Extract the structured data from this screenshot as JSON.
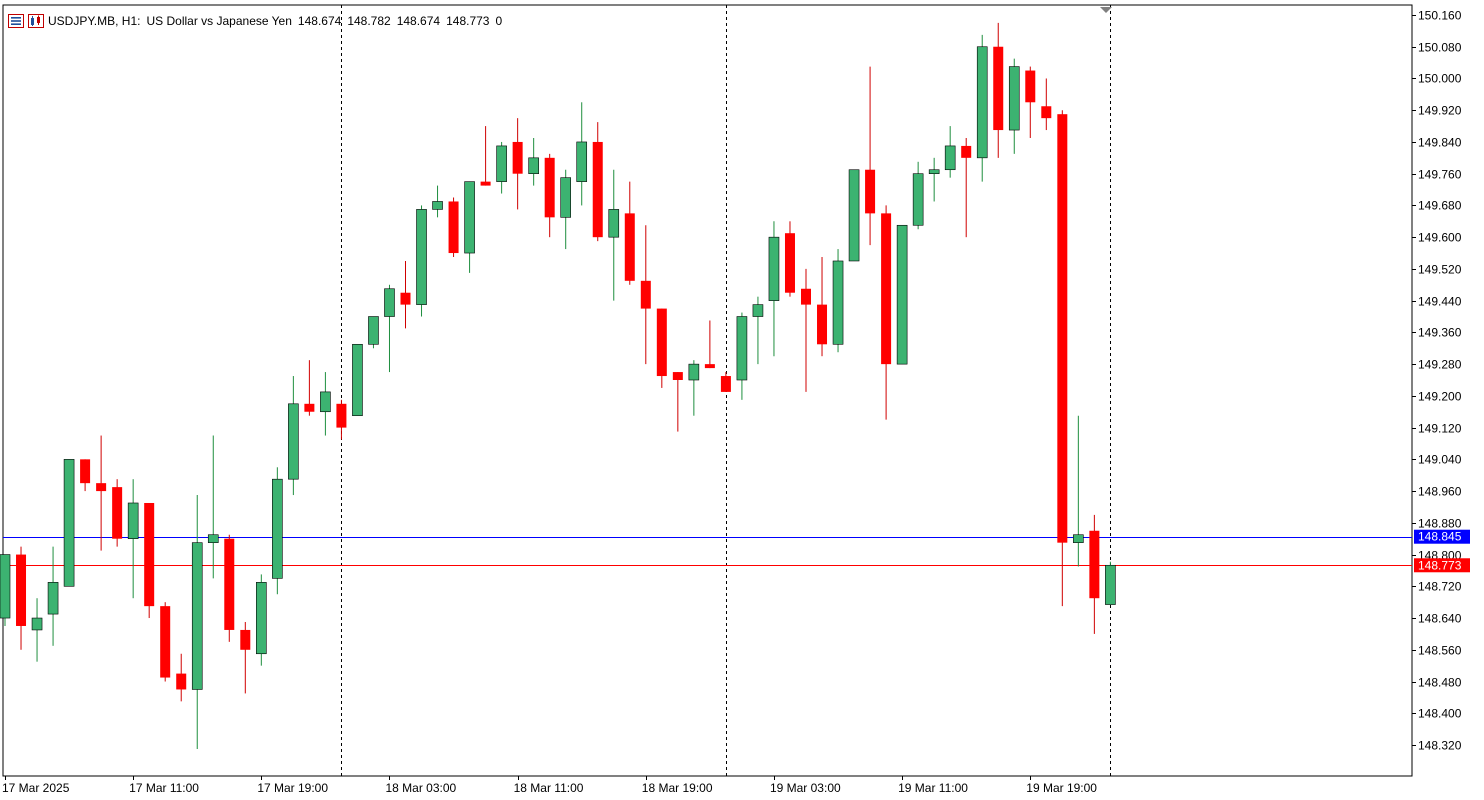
{
  "header": {
    "symbol": "USDJPY.MB, H1:",
    "description": "US Dollar vs Japanese Yen",
    "open": "148.674",
    "high": "148.782",
    "low": "148.674",
    "close": "148.773",
    "volume": "0"
  },
  "icons": {
    "menu": "list-menu-icon",
    "chart_window": "chart-window-icon",
    "shift_marker": "shift-marker-icon"
  },
  "colors": {
    "bull": "#3cb371",
    "bear": "#ff0000",
    "bid_line": "#ff0000",
    "ask_line": "#0000ff",
    "grid_dash": "#000000"
  },
  "chart_data": {
    "type": "candlestick",
    "timeframe": "H1",
    "ylim": [
      148.28,
      150.18
    ],
    "y_ticks": [
      "150.160",
      "150.080",
      "150.000",
      "149.920",
      "149.840",
      "149.760",
      "149.680",
      "149.600",
      "149.520",
      "149.440",
      "149.360",
      "149.280",
      "149.200",
      "149.120",
      "149.040",
      "148.960",
      "148.880",
      "148.800",
      "148.720",
      "148.640",
      "148.560",
      "148.480",
      "148.400",
      "148.320"
    ],
    "x_labels": [
      {
        "label": "17 Mar 2025",
        "bar": 0
      },
      {
        "label": "17 Mar 11:00",
        "bar": 8
      },
      {
        "label": "17 Mar 19:00",
        "bar": 16
      },
      {
        "label": "18 Mar 03:00",
        "bar": 24
      },
      {
        "label": "18 Mar 11:00",
        "bar": 32
      },
      {
        "label": "18 Mar 19:00",
        "bar": 40
      },
      {
        "label": "19 Mar 03:00",
        "bar": 48
      },
      {
        "label": "19 Mar 11:00",
        "bar": 56
      },
      {
        "label": "19 Mar 19:00",
        "bar": 64
      }
    ],
    "day_separators": [
      21,
      45,
      69
    ],
    "ask_line": {
      "value": 148.845,
      "label": "148.845"
    },
    "bid_line": {
      "value": 148.773,
      "label": "148.773"
    },
    "candles": [
      {
        "o": 148.64,
        "h": 148.8,
        "l": 148.62,
        "c": 148.8
      },
      {
        "o": 148.8,
        "h": 148.82,
        "l": 148.56,
        "c": 148.62
      },
      {
        "o": 148.61,
        "h": 148.69,
        "l": 148.53,
        "c": 148.64
      },
      {
        "o": 148.65,
        "h": 148.82,
        "l": 148.57,
        "c": 148.73
      },
      {
        "o": 148.72,
        "h": 149.04,
        "l": 148.72,
        "c": 149.04
      },
      {
        "o": 149.04,
        "h": 149.04,
        "l": 148.96,
        "c": 148.98
      },
      {
        "o": 148.98,
        "h": 149.1,
        "l": 148.81,
        "c": 148.96
      },
      {
        "o": 148.97,
        "h": 148.99,
        "l": 148.82,
        "c": 148.84
      },
      {
        "o": 148.84,
        "h": 148.99,
        "l": 148.69,
        "c": 148.93
      },
      {
        "o": 148.93,
        "h": 148.93,
        "l": 148.64,
        "c": 148.67
      },
      {
        "o": 148.67,
        "h": 148.68,
        "l": 148.48,
        "c": 148.49
      },
      {
        "o": 148.5,
        "h": 148.55,
        "l": 148.43,
        "c": 148.46
      },
      {
        "o": 148.46,
        "h": 148.95,
        "l": 148.31,
        "c": 148.83
      },
      {
        "o": 148.83,
        "h": 149.1,
        "l": 148.74,
        "c": 148.85
      },
      {
        "o": 148.84,
        "h": 148.85,
        "l": 148.58,
        "c": 148.61
      },
      {
        "o": 148.61,
        "h": 148.63,
        "l": 148.45,
        "c": 148.56
      },
      {
        "o": 148.55,
        "h": 148.75,
        "l": 148.52,
        "c": 148.73
      },
      {
        "o": 148.74,
        "h": 149.02,
        "l": 148.7,
        "c": 148.99
      },
      {
        "o": 148.99,
        "h": 149.25,
        "l": 148.95,
        "c": 149.18
      },
      {
        "o": 149.18,
        "h": 149.29,
        "l": 149.15,
        "c": 149.16
      },
      {
        "o": 149.16,
        "h": 149.26,
        "l": 149.1,
        "c": 149.21
      },
      {
        "o": 149.18,
        "h": 149.19,
        "l": 149.09,
        "c": 149.12
      },
      {
        "o": 149.15,
        "h": 149.33,
        "l": 149.15,
        "c": 149.33
      },
      {
        "o": 149.33,
        "h": 149.4,
        "l": 149.32,
        "c": 149.4
      },
      {
        "o": 149.4,
        "h": 149.48,
        "l": 149.26,
        "c": 149.47
      },
      {
        "o": 149.46,
        "h": 149.54,
        "l": 149.37,
        "c": 149.43
      },
      {
        "o": 149.43,
        "h": 149.68,
        "l": 149.4,
        "c": 149.67
      },
      {
        "o": 149.67,
        "h": 149.73,
        "l": 149.65,
        "c": 149.69
      },
      {
        "o": 149.69,
        "h": 149.7,
        "l": 149.55,
        "c": 149.56
      },
      {
        "o": 149.56,
        "h": 149.74,
        "l": 149.51,
        "c": 149.74
      },
      {
        "o": 149.74,
        "h": 149.88,
        "l": 149.73,
        "c": 149.73
      },
      {
        "o": 149.74,
        "h": 149.84,
        "l": 149.71,
        "c": 149.83
      },
      {
        "o": 149.84,
        "h": 149.9,
        "l": 149.67,
        "c": 149.76
      },
      {
        "o": 149.76,
        "h": 149.85,
        "l": 149.73,
        "c": 149.8
      },
      {
        "o": 149.8,
        "h": 149.81,
        "l": 149.6,
        "c": 149.65
      },
      {
        "o": 149.65,
        "h": 149.77,
        "l": 149.57,
        "c": 149.75
      },
      {
        "o": 149.74,
        "h": 149.94,
        "l": 149.68,
        "c": 149.84
      },
      {
        "o": 149.84,
        "h": 149.89,
        "l": 149.59,
        "c": 149.6
      },
      {
        "o": 149.6,
        "h": 149.77,
        "l": 149.44,
        "c": 149.67
      },
      {
        "o": 149.66,
        "h": 149.74,
        "l": 149.48,
        "c": 149.49
      },
      {
        "o": 149.49,
        "h": 149.63,
        "l": 149.28,
        "c": 149.42
      },
      {
        "o": 149.42,
        "h": 149.42,
        "l": 149.22,
        "c": 149.25
      },
      {
        "o": 149.26,
        "h": 149.26,
        "l": 149.11,
        "c": 149.24
      },
      {
        "o": 149.24,
        "h": 149.29,
        "l": 149.15,
        "c": 149.28
      },
      {
        "o": 149.28,
        "h": 149.39,
        "l": 149.27,
        "c": 149.27
      },
      {
        "o": 149.25,
        "h": 149.26,
        "l": 149.21,
        "c": 149.21
      },
      {
        "o": 149.24,
        "h": 149.41,
        "l": 149.19,
        "c": 149.4
      },
      {
        "o": 149.4,
        "h": 149.45,
        "l": 149.28,
        "c": 149.43
      },
      {
        "o": 149.44,
        "h": 149.64,
        "l": 149.3,
        "c": 149.6
      },
      {
        "o": 149.61,
        "h": 149.64,
        "l": 149.45,
        "c": 149.46
      },
      {
        "o": 149.47,
        "h": 149.52,
        "l": 149.21,
        "c": 149.43
      },
      {
        "o": 149.43,
        "h": 149.55,
        "l": 149.3,
        "c": 149.33
      },
      {
        "o": 149.33,
        "h": 149.57,
        "l": 149.31,
        "c": 149.54
      },
      {
        "o": 149.54,
        "h": 149.77,
        "l": 149.54,
        "c": 149.77
      },
      {
        "o": 149.77,
        "h": 150.03,
        "l": 149.58,
        "c": 149.66
      },
      {
        "o": 149.66,
        "h": 149.68,
        "l": 149.14,
        "c": 149.28
      },
      {
        "o": 149.28,
        "h": 149.63,
        "l": 149.28,
        "c": 149.63
      },
      {
        "o": 149.63,
        "h": 149.79,
        "l": 149.62,
        "c": 149.76
      },
      {
        "o": 149.76,
        "h": 149.8,
        "l": 149.69,
        "c": 149.77
      },
      {
        "o": 149.77,
        "h": 149.88,
        "l": 149.75,
        "c": 149.83
      },
      {
        "o": 149.83,
        "h": 149.85,
        "l": 149.6,
        "c": 149.8
      },
      {
        "o": 149.8,
        "h": 150.11,
        "l": 149.74,
        "c": 150.08
      },
      {
        "o": 150.08,
        "h": 150.14,
        "l": 149.8,
        "c": 149.87
      },
      {
        "o": 149.87,
        "h": 150.05,
        "l": 149.81,
        "c": 150.03
      },
      {
        "o": 150.02,
        "h": 150.03,
        "l": 149.85,
        "c": 149.94
      },
      {
        "o": 149.93,
        "h": 150.0,
        "l": 149.87,
        "c": 149.9
      },
      {
        "o": 149.91,
        "h": 149.92,
        "l": 148.67,
        "c": 148.83
      },
      {
        "o": 148.83,
        "h": 149.15,
        "l": 148.77,
        "c": 148.85
      },
      {
        "o": 148.86,
        "h": 148.9,
        "l": 148.6,
        "c": 148.69
      },
      {
        "o": 148.674,
        "h": 148.782,
        "l": 148.674,
        "c": 148.773
      }
    ]
  }
}
